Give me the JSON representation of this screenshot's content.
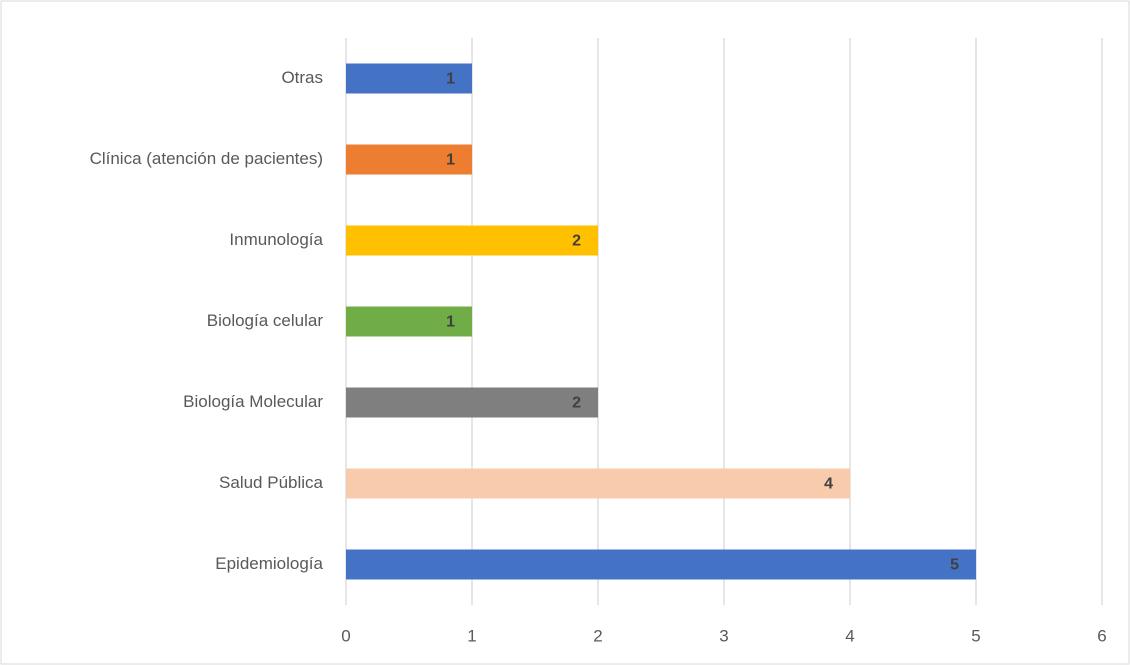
{
  "chart_data": {
    "type": "hbar",
    "categories": [
      "Otras",
      "Clínica (atención de pacientes)",
      "Inmunología",
      "Biología celular",
      "Biología Molecular",
      "Salud Pública",
      "Epidemiología"
    ],
    "values": [
      1,
      1,
      2,
      1,
      2,
      4,
      5
    ],
    "colors": [
      "#4472c4",
      "#ed7d31",
      "#ffc000",
      "#70ad47",
      "#7f7f7f",
      "#f8cbad",
      "#4472c4"
    ],
    "xlim": [
      0,
      6
    ],
    "xticks": [
      0,
      1,
      2,
      3,
      4,
      5,
      6
    ],
    "grid": true
  }
}
